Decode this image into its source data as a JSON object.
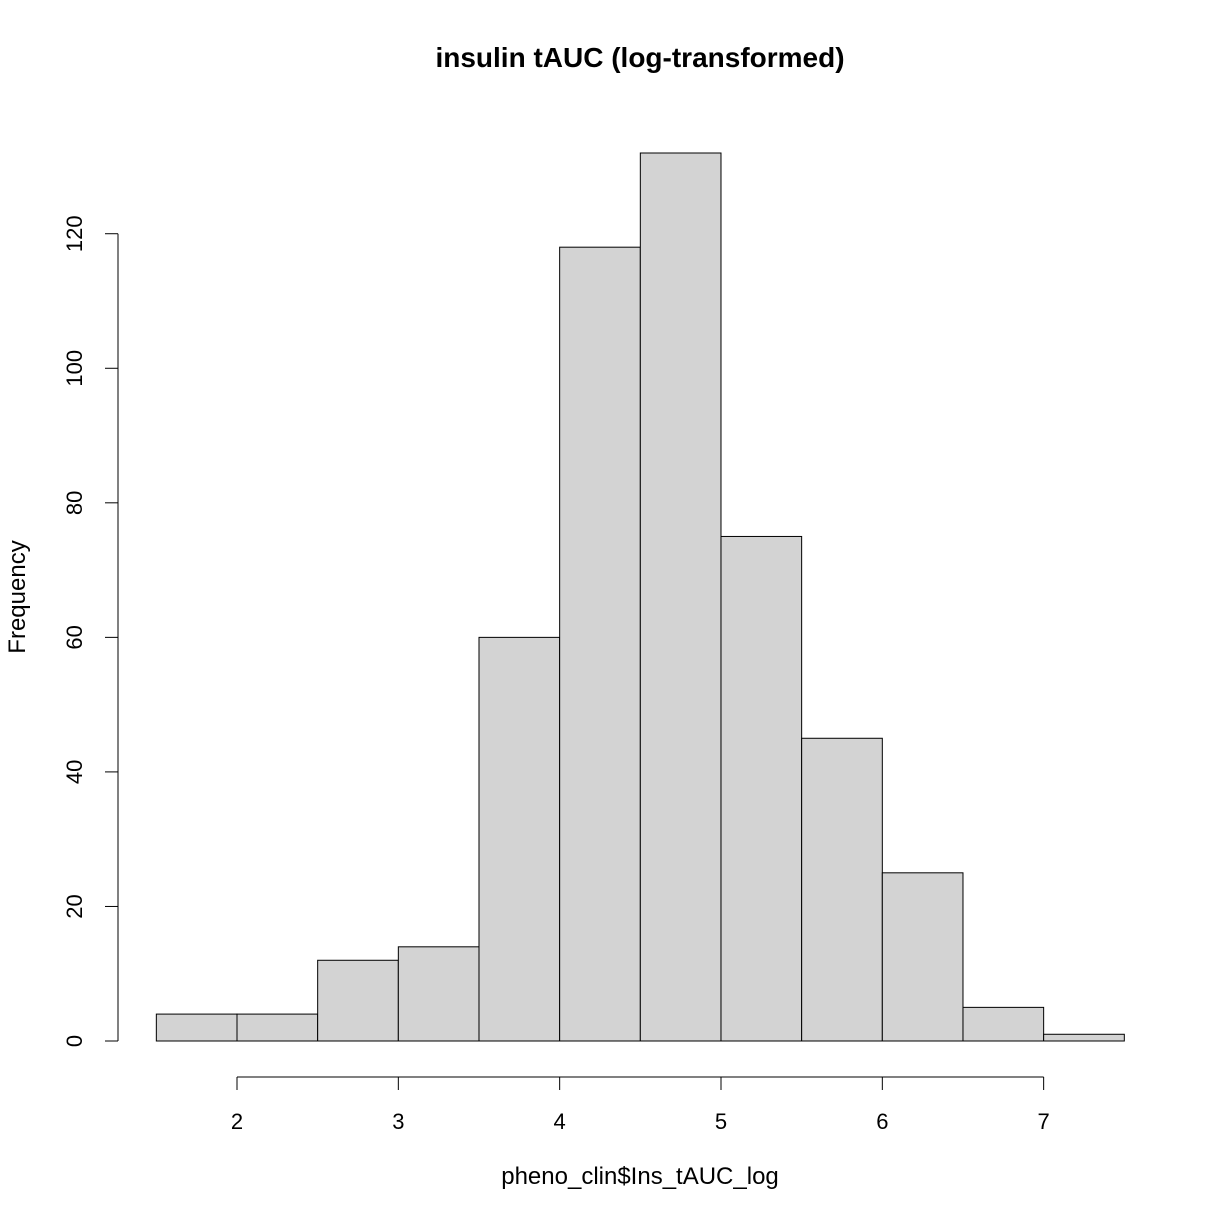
{
  "chart_data": {
    "type": "bar",
    "title": "insulin tAUC (log-transformed)",
    "xlabel": "pheno_clin$Ins_tAUC_log",
    "ylabel": "Frequency",
    "bin_edges": [
      1.5,
      2,
      2.5,
      3,
      3.5,
      4,
      4.5,
      5,
      5.5,
      6,
      6.5,
      7,
      7.5
    ],
    "values": [
      4,
      4,
      12,
      14,
      60,
      118,
      132,
      75,
      45,
      25,
      5,
      1
    ],
    "xlim": [
      1.5,
      7.5
    ],
    "ylim": [
      0,
      132
    ],
    "x_ticks": [
      2,
      3,
      4,
      5,
      6,
      7
    ],
    "x_tick_labels": [
      "2",
      "3",
      "4",
      "5",
      "6",
      "7"
    ],
    "y_ticks": [
      0,
      20,
      40,
      60,
      80,
      100,
      120
    ],
    "y_tick_labels": [
      "0",
      "20",
      "40",
      "60",
      "80",
      "100",
      "120"
    ],
    "bar_fill": "#d3d3d3",
    "bar_stroke": "#000000",
    "grid": false,
    "legend": "none"
  }
}
